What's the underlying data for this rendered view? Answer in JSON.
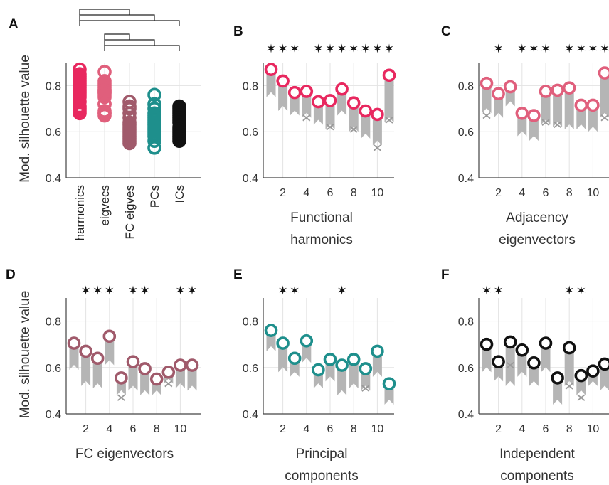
{
  "colors": {
    "harmonics": "#e8285f",
    "eigvecs": "#e05f7c",
    "fc": "#a05a6b",
    "pcs": "#1e8f8c",
    "ics": "#111111",
    "null_bar": "#b5b5b5",
    "null_marker": "#9a9a9a",
    "axis": "#444444",
    "grid": "#e3e3e3"
  },
  "ylabel": "Mod. silhouette value",
  "chart_data": [
    {
      "panel": "A",
      "type": "scatter",
      "categories": [
        "harmonics",
        "eigvecs",
        "FC eigves",
        "PCs",
        "ICs"
      ],
      "series": [
        {
          "category": "harmonics",
          "values": [
            0.87,
            0.85,
            0.84,
            0.83,
            0.82,
            0.81,
            0.8,
            0.79,
            0.78,
            0.77,
            0.76,
            0.75,
            0.73,
            0.71,
            0.7,
            0.69,
            0.68
          ]
        },
        {
          "category": "eigvecs",
          "values": [
            0.86,
            0.82,
            0.81,
            0.8,
            0.79,
            0.78,
            0.78,
            0.77,
            0.77,
            0.76,
            0.75,
            0.72,
            0.72,
            0.69,
            0.68,
            0.68,
            0.67
          ]
        },
        {
          "category": "FC eigves",
          "values": [
            0.73,
            0.71,
            0.7,
            0.68,
            0.66,
            0.64,
            0.63,
            0.62,
            0.61,
            0.6,
            0.59,
            0.58,
            0.57,
            0.56,
            0.55
          ]
        },
        {
          "category": "PCs",
          "values": [
            0.76,
            0.72,
            0.7,
            0.68,
            0.67,
            0.66,
            0.65,
            0.64,
            0.63,
            0.62,
            0.61,
            0.6,
            0.59,
            0.58,
            0.56,
            0.53
          ]
        },
        {
          "category": "ICs",
          "values": [
            0.71,
            0.7,
            0.69,
            0.68,
            0.67,
            0.66,
            0.65,
            0.64,
            0.62,
            0.61,
            0.6,
            0.59,
            0.58,
            0.57,
            0.56
          ]
        }
      ],
      "ylim": [
        0.4,
        0.9
      ],
      "yticks": [
        "0.4",
        "0.6",
        "0.8"
      ],
      "ylabel": "Mod. silhouette value",
      "significance_brackets": [
        [
          "harmonics",
          "FC eigves"
        ],
        [
          "harmonics",
          "PCs"
        ],
        [
          "harmonics",
          "ICs"
        ],
        [
          "eigvecs",
          "FC eigves"
        ],
        [
          "eigvecs",
          "PCs"
        ],
        [
          "eigvecs",
          "ICs"
        ]
      ]
    },
    {
      "panel": "B",
      "type": "scatter",
      "color_key": "harmonics",
      "xlabel": [
        "Functional",
        "harmonics"
      ],
      "x": [
        1,
        2,
        3,
        4,
        5,
        6,
        7,
        8,
        9,
        10,
        11
      ],
      "values": [
        0.87,
        0.82,
        0.77,
        0.775,
        0.73,
        0.735,
        0.785,
        0.725,
        0.69,
        0.675,
        0.845
      ],
      "null_range": [
        [
          0.75,
          0.87
        ],
        [
          0.69,
          0.8
        ],
        [
          0.67,
          0.77
        ],
        [
          0.66,
          0.77
        ],
        [
          0.63,
          0.72
        ],
        [
          0.61,
          0.73
        ],
        [
          0.67,
          0.78
        ],
        [
          0.6,
          0.72
        ],
        [
          0.57,
          0.69
        ],
        [
          0.54,
          0.67
        ],
        [
          0.64,
          0.83
        ]
      ],
      "null_x_markers": [
        null,
        null,
        null,
        0.66,
        null,
        0.62,
        null,
        0.61,
        null,
        0.53,
        0.65
      ],
      "significance": [
        true,
        true,
        true,
        false,
        true,
        true,
        true,
        true,
        true,
        true,
        true
      ],
      "ylim": [
        0.4,
        0.9
      ],
      "xticks": [
        "2",
        "4",
        "6",
        "8",
        "10"
      ],
      "yticks": [
        "0.4",
        "0.6",
        "0.8"
      ]
    },
    {
      "panel": "C",
      "type": "scatter",
      "color_key": "eigvecs",
      "xlabel": [
        "Adjacency",
        "eigenvectors"
      ],
      "x": [
        1,
        2,
        3,
        4,
        5,
        6,
        7,
        8,
        9,
        10,
        11
      ],
      "values": [
        0.81,
        0.765,
        0.795,
        0.68,
        0.67,
        0.775,
        0.78,
        0.79,
        0.715,
        0.715,
        0.855
      ],
      "null_range": [
        [
          0.68,
          0.8
        ],
        [
          0.66,
          0.76
        ],
        [
          0.71,
          0.79
        ],
        [
          0.58,
          0.67
        ],
        [
          0.56,
          0.67
        ],
        [
          0.63,
          0.77
        ],
        [
          0.62,
          0.78
        ],
        [
          0.61,
          0.78
        ],
        [
          0.61,
          0.71
        ],
        [
          0.6,
          0.71
        ],
        [
          0.66,
          0.86
        ]
      ],
      "null_x_markers": [
        0.67,
        null,
        null,
        null,
        null,
        0.64,
        0.63,
        null,
        null,
        null,
        0.66
      ],
      "significance": [
        false,
        true,
        false,
        true,
        true,
        true,
        false,
        true,
        true,
        true,
        true
      ],
      "ylim": [
        0.4,
        0.9
      ],
      "xticks": [
        "2",
        "4",
        "6",
        "8",
        "10"
      ],
      "yticks": [
        "0.4",
        "0.6",
        "0.8"
      ]
    },
    {
      "panel": "D",
      "type": "scatter",
      "color_key": "fc",
      "xlabel": [
        "FC eigenvectors"
      ],
      "x": [
        1,
        2,
        3,
        4,
        5,
        6,
        7,
        8,
        9,
        10,
        11
      ],
      "values": [
        0.705,
        0.67,
        0.64,
        0.735,
        0.555,
        0.625,
        0.595,
        0.55,
        0.58,
        0.61,
        0.61
      ],
      "null_range": [
        [
          0.59,
          0.7
        ],
        [
          0.52,
          0.66
        ],
        [
          0.51,
          0.64
        ],
        [
          0.61,
          0.73
        ],
        [
          0.48,
          0.55
        ],
        [
          0.5,
          0.62
        ],
        [
          0.48,
          0.59
        ],
        [
          0.48,
          0.55
        ],
        [
          0.53,
          0.58
        ],
        [
          0.51,
          0.61
        ],
        [
          0.5,
          0.62
        ]
      ],
      "null_x_markers": [
        null,
        null,
        null,
        null,
        0.47,
        null,
        null,
        null,
        0.53,
        null,
        null
      ],
      "significance": [
        false,
        true,
        true,
        true,
        false,
        true,
        true,
        false,
        false,
        true,
        true
      ],
      "ylim": [
        0.4,
        0.9
      ],
      "xticks": [
        "2",
        "4",
        "6",
        "8",
        "10"
      ],
      "yticks": [
        "0.4",
        "0.6",
        "0.8"
      ]
    },
    {
      "panel": "E",
      "type": "scatter",
      "color_key": "pcs",
      "xlabel": [
        "Principal",
        "components"
      ],
      "x": [
        1,
        2,
        3,
        4,
        5,
        6,
        7,
        8,
        9,
        10,
        11
      ],
      "values": [
        0.76,
        0.705,
        0.64,
        0.715,
        0.59,
        0.635,
        0.61,
        0.635,
        0.595,
        0.67,
        0.53
      ],
      "null_range": [
        [
          0.67,
          0.75
        ],
        [
          0.58,
          0.7
        ],
        [
          0.56,
          0.64
        ],
        [
          0.62,
          0.71
        ],
        [
          0.51,
          0.58
        ],
        [
          0.54,
          0.63
        ],
        [
          0.48,
          0.6
        ],
        [
          0.51,
          0.63
        ],
        [
          0.5,
          0.59
        ],
        [
          0.56,
          0.66
        ],
        [
          0.44,
          0.52
        ]
      ],
      "null_x_markers": [
        null,
        null,
        null,
        null,
        null,
        null,
        null,
        null,
        0.51,
        null,
        null
      ],
      "significance": [
        false,
        true,
        true,
        false,
        false,
        false,
        true,
        false,
        false,
        false,
        false
      ],
      "ylim": [
        0.4,
        0.9
      ],
      "xticks": [
        "2",
        "4",
        "6",
        "8",
        "10"
      ],
      "yticks": [
        "0.4",
        "0.6",
        "0.8"
      ]
    },
    {
      "panel": "F",
      "type": "scatter",
      "color_key": "ics",
      "xlabel": [
        "Independent",
        "components"
      ],
      "x": [
        1,
        2,
        3,
        4,
        5,
        6,
        7,
        8,
        9,
        10,
        11
      ],
      "values": [
        0.7,
        0.625,
        0.71,
        0.675,
        0.62,
        0.705,
        0.555,
        0.685,
        0.565,
        0.585,
        0.615
      ],
      "null_range": [
        [
          0.58,
          0.69
        ],
        [
          0.54,
          0.62
        ],
        [
          0.52,
          0.72
        ],
        [
          0.56,
          0.67
        ],
        [
          0.52,
          0.61
        ],
        [
          0.58,
          0.7
        ],
        [
          0.44,
          0.55
        ],
        [
          0.52,
          0.67
        ],
        [
          0.48,
          0.56
        ],
        [
          0.52,
          0.58
        ],
        [
          0.5,
          0.62
        ]
      ],
      "null_x_markers": [
        null,
        null,
        0.61,
        null,
        null,
        null,
        null,
        0.52,
        0.47,
        null,
        null
      ],
      "significance": [
        true,
        true,
        false,
        false,
        false,
        false,
        false,
        true,
        true,
        false,
        false
      ],
      "ylim": [
        0.4,
        0.9
      ],
      "xticks": [
        "2",
        "4",
        "6",
        "8",
        "10"
      ],
      "yticks": [
        "0.4",
        "0.6",
        "0.8"
      ]
    }
  ]
}
